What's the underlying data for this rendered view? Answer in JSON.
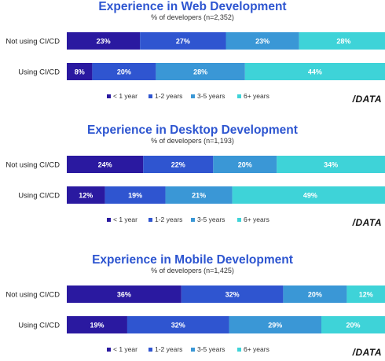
{
  "colors": {
    "title": "#2d55d0",
    "series": [
      "#2a19a0",
      "#2f55d0",
      "#3a97d6",
      "#3ed3d8"
    ]
  },
  "logo_text": "/DATA",
  "chart_data": [
    {
      "type": "bar",
      "orientation": "horizontal",
      "stacked": true,
      "title": "Experience in Web Development",
      "subtitle": "% of developers (n=2,352)",
      "categories": [
        "Not using CI/CD",
        "Using CI/CD"
      ],
      "series": [
        {
          "name": "< 1 year",
          "values": [
            23,
            8
          ]
        },
        {
          "name": "1-2 years",
          "values": [
            27,
            20
          ]
        },
        {
          "name": "3-5 years",
          "values": [
            23,
            28
          ]
        },
        {
          "name": "6+ years",
          "values": [
            28,
            44
          ]
        }
      ],
      "legend": "bottom",
      "xlim": [
        0,
        100
      ]
    },
    {
      "type": "bar",
      "orientation": "horizontal",
      "stacked": true,
      "title": "Experience in Desktop Development",
      "subtitle": "% of developers (n=1,193)",
      "categories": [
        "Not using CI/CD",
        "Using CI/CD"
      ],
      "series": [
        {
          "name": "< 1 year",
          "values": [
            24,
            12
          ]
        },
        {
          "name": "1-2 years",
          "values": [
            22,
            19
          ]
        },
        {
          "name": "3-5 years",
          "values": [
            20,
            21
          ]
        },
        {
          "name": "6+ years",
          "values": [
            34,
            49
          ]
        }
      ],
      "legend": "bottom",
      "xlim": [
        0,
        100
      ]
    },
    {
      "type": "bar",
      "orientation": "horizontal",
      "stacked": true,
      "title": "Experience in Mobile Development",
      "subtitle": "% of developers (n=1,425)",
      "categories": [
        "Not using CI/CD",
        "Using CI/CD"
      ],
      "series": [
        {
          "name": "< 1 year",
          "values": [
            36,
            19
          ]
        },
        {
          "name": "1-2 years",
          "values": [
            32,
            32
          ]
        },
        {
          "name": "3-5 years",
          "values": [
            20,
            29
          ]
        },
        {
          "name": "6+ years",
          "values": [
            12,
            20
          ]
        }
      ],
      "legend": "bottom",
      "xlim": [
        0,
        100
      ]
    }
  ]
}
